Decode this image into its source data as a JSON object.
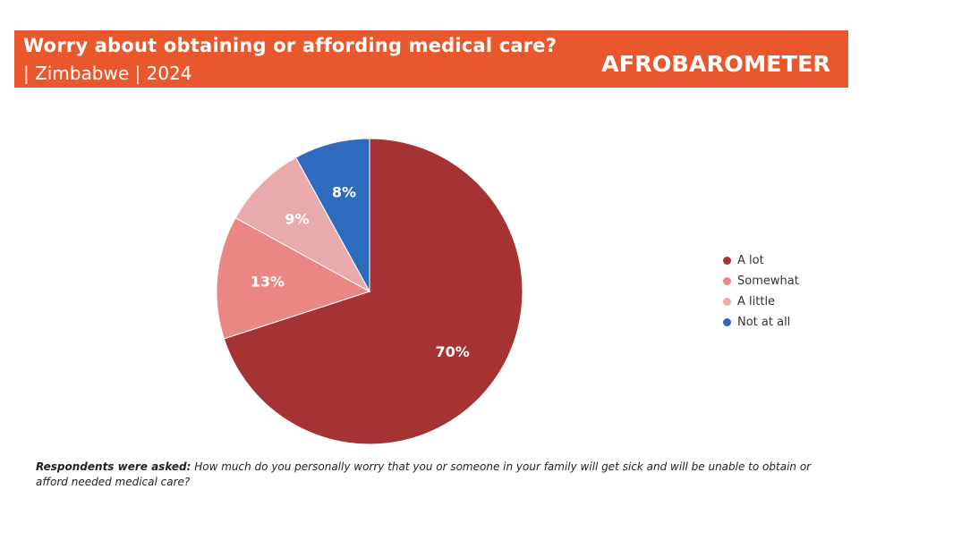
{
  "header": {
    "title": "Worry about obtaining or affording medical care?",
    "subtitle": "| Zimbabwe | 2024",
    "brand": "AFROBAROMETER",
    "background_color": "#e8582c"
  },
  "chart_data": {
    "type": "pie",
    "title": "Worry about obtaining or affording medical care?",
    "subtitle": "| Zimbabwe | 2024",
    "categories": [
      "A lot",
      "Somewhat",
      "A little",
      "Not at all"
    ],
    "values": [
      70,
      13,
      9,
      8
    ],
    "labels": [
      "70%",
      "13%",
      "9%",
      "8%"
    ],
    "colors": [
      "#a53333",
      "#ea8784",
      "#e8aaaa",
      "#2e6bbd"
    ],
    "legend_position": "right"
  },
  "footnote": {
    "lead": "Respondents were asked:",
    "text": " How much do you personally worry that you or someone in your family will get sick and will be unable to obtain or afford needed medical care?"
  }
}
